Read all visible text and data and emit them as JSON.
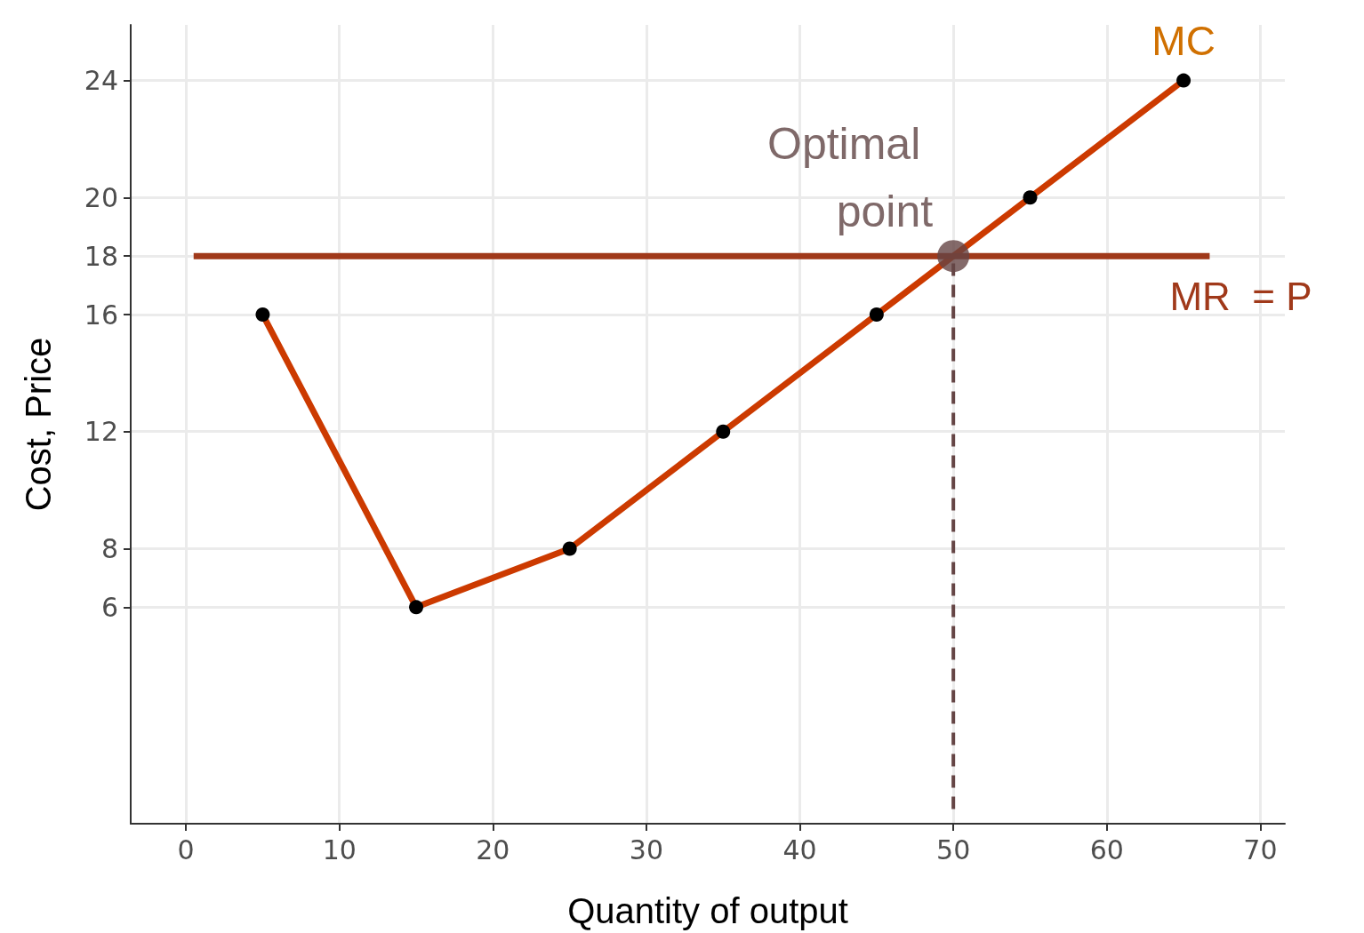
{
  "chart_data": {
    "type": "line",
    "xlabel": "Quantity of output",
    "ylabel": "Cost, Price",
    "xlim": [
      -3.6,
      71.6
    ],
    "xticks": [
      0,
      10,
      20,
      30,
      40,
      50,
      60,
      70
    ],
    "ylim": [
      -1.4,
      25.9
    ],
    "yticks": [
      6,
      8,
      12,
      16,
      18,
      20,
      24
    ],
    "grid": true,
    "legend": false,
    "series": [
      {
        "name": "MC",
        "color": "#cc3a00",
        "x": [
          5,
          15,
          25,
          35,
          45,
          55,
          65
        ],
        "values": [
          16,
          6,
          8,
          12,
          16,
          20,
          24
        ],
        "colors": [
          "#000000",
          "#000000",
          "#000000",
          "#000000",
          "#000000",
          "#000000",
          "#000000"
        ],
        "marker": "circle",
        "line_style": "solid"
      },
      {
        "name": "MR  = P",
        "color": "#a0391a",
        "x": [
          0.5,
          66.7
        ],
        "values": [
          18,
          18
        ],
        "marker": "none",
        "line_style": "solid"
      },
      {
        "color": "#654545",
        "x": [
          50,
          50
        ],
        "values": [
          -0.9,
          18
        ],
        "marker": "none",
        "line_style": "dashed"
      },
      {
        "name": "Optimal point",
        "type": "scatter",
        "color": "#654545",
        "x": [
          50
        ],
        "values": [
          18
        ],
        "marker": "circle"
      }
    ]
  }
}
